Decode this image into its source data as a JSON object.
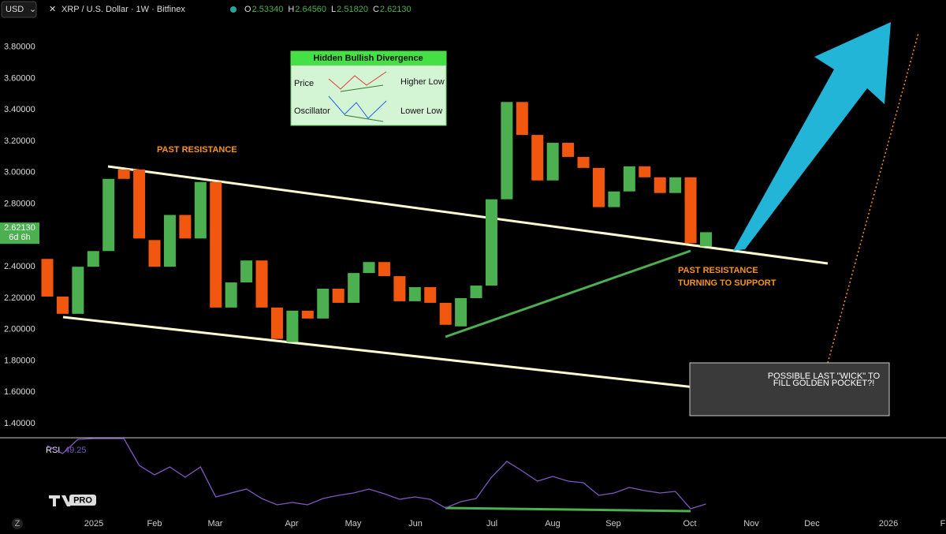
{
  "header": {
    "currency": "USD",
    "ohlc": [
      [
        "O",
        "2.53340"
      ],
      [
        "H",
        "2.64560"
      ],
      [
        "L",
        "2.51820"
      ],
      [
        "C",
        "2.62130"
      ]
    ]
  },
  "inset": {
    "title": "Hidden Bullish Divergence",
    "rows": [
      [
        "Price",
        "Higher Low"
      ],
      [
        "Oscillator",
        "Lower Low"
      ]
    ]
  },
  "branding": "PRO",
  "chart_data": [
    {
      "type": "candlestick",
      "title": "XRP / U.S. Dollar · 1W · Bitfinex",
      "open": [
        2.45,
        2.21,
        2.1,
        2.4,
        2.5,
        3.02,
        3.02,
        2.57,
        2.4,
        2.73,
        2.58,
        2.94,
        2.14,
        2.3,
        2.44,
        2.14,
        1.92,
        2.12,
        2.07,
        2.26,
        2.17,
        2.36,
        2.43,
        2.34,
        2.18,
        2.27,
        2.17,
        2.02,
        2.2,
        2.28,
        2.83,
        3.45,
        3.24,
        2.95,
        3.19,
        3.1,
        3.03,
        2.78,
        2.88,
        3.04,
        2.97,
        2.87,
        2.97,
        2.53
      ],
      "close": [
        2.21,
        2.1,
        2.4,
        2.5,
        2.96,
        2.96,
        2.58,
        2.4,
        2.73,
        2.58,
        2.94,
        2.14,
        2.3,
        2.44,
        2.14,
        1.94,
        2.12,
        2.07,
        2.26,
        2.17,
        2.36,
        2.43,
        2.34,
        2.18,
        2.27,
        2.17,
        2.03,
        2.2,
        2.28,
        2.83,
        3.45,
        3.24,
        2.95,
        3.19,
        3.1,
        3.03,
        2.78,
        2.88,
        3.04,
        2.97,
        2.87,
        2.97,
        2.55,
        2.62
      ],
      "up_color": "#4caf50",
      "down_color": "#f2570f",
      "ylim": [
        1.31,
        4.1
      ],
      "yticks": [
        {
          "value": 1.4,
          "label": "1.40000"
        },
        {
          "value": 1.6,
          "label": "1.60000"
        },
        {
          "value": 1.8,
          "label": "1.80000"
        },
        {
          "value": 2.0,
          "label": "2.00000"
        },
        {
          "value": 2.2,
          "label": "2.20000"
        },
        {
          "value": 2.4,
          "label": "2.40000"
        },
        {
          "value": 2.6,
          "label": "2.60000"
        },
        {
          "value": 2.8,
          "label": "2.80000"
        },
        {
          "value": 3.0,
          "label": "3.00000"
        },
        {
          "value": 3.2,
          "label": "3.20000"
        },
        {
          "value": 3.4,
          "label": "3.40000"
        },
        {
          "value": 3.6,
          "label": "3.60000"
        },
        {
          "value": 3.8,
          "label": "3.80000"
        }
      ],
      "last_price": {
        "value": 2.6213,
        "label": "2.62130"
      },
      "countdown": "6d 6h",
      "x_labels": [
        "2025",
        "Feb",
        "Mar",
        "Apr",
        "May",
        "Jun",
        "Jul",
        "Aug",
        "Sep",
        "Oct",
        "Nov",
        "Dec",
        "2026",
        "F"
      ],
      "annotations": {
        "resistance": "PAST RESISTANCE",
        "support": [
          "PAST RESISTANCE",
          "TURNING TO SUPPORT"
        ],
        "wick": [
          "POSSIBLE LAST \"WICK\" TO",
          "FILL GOLDEN POCKET?!"
        ]
      }
    },
    {
      "type": "line",
      "name": "RSI",
      "last_label": "49.25",
      "color": "#7e57c2",
      "ylim": [
        40,
        70
      ],
      "values": [
        67.75,
        65.25,
        69.75,
        70,
        70,
        70,
        61.5,
        58.5,
        61,
        57.75,
        61,
        51.5,
        52.75,
        54,
        51,
        49,
        49.75,
        49,
        51,
        52,
        52.75,
        54,
        52.5,
        50.75,
        51.5,
        50.75,
        48,
        50,
        51,
        57.75,
        62.75,
        59.75,
        56.5,
        58,
        56.5,
        56,
        52,
        52.75,
        54.5,
        53.5,
        52.75,
        53.25,
        47.75,
        49.25
      ]
    }
  ]
}
